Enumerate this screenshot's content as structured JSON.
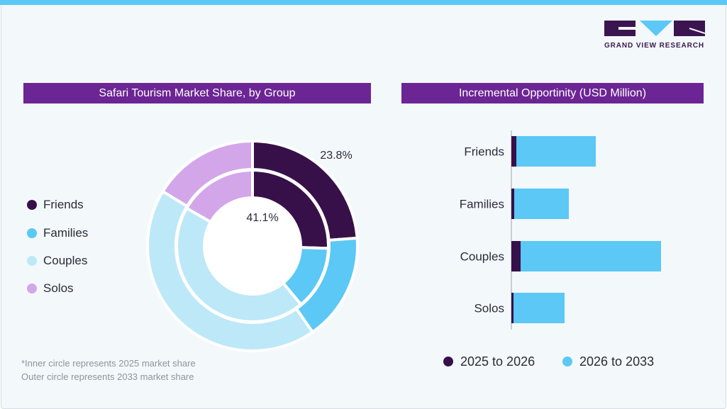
{
  "brand": {
    "logo_text": "GRAND VIEW RESEARCH"
  },
  "colors": {
    "friends": "#37104a",
    "families": "#5bc8f5",
    "couples": "#bde8f8",
    "solos": "#d3a6ea",
    "header": "#6c2594",
    "accent": "#5bc8f5"
  },
  "left_title": "Safari Tourism Market Share, by Group",
  "right_title": "Incremental Opportinity (USD Million)",
  "notes": [
    "*Inner circle represents 2025 market share",
    "Outer circle represents 2033 market share"
  ],
  "chart_data": [
    {
      "type": "pie",
      "style": "nested-donut",
      "title": "Safari Tourism Market Share, by Group",
      "categories": [
        "Friends",
        "Families",
        "Couples",
        "Solos"
      ],
      "series": [
        {
          "name": "Inner circle represents 2025 market share",
          "values": [
            25.5,
            13.5,
            44.3,
            16.7
          ]
        },
        {
          "name": "Outer circle represents 2033 market share",
          "values": [
            23.8,
            16.5,
            43.4,
            16.3
          ]
        }
      ],
      "data_labels": {
        "outer_friends": "23.8%",
        "center": "41.1%"
      },
      "legend": "left"
    },
    {
      "type": "bar",
      "orientation": "horizontal",
      "stacked": true,
      "title": "Incremental Opportinity (USD Million)",
      "categories": [
        "Friends",
        "Families",
        "Couples",
        "Solos"
      ],
      "series": [
        {
          "name": "2025 to 2026",
          "values": [
            7,
            4,
            13,
            3
          ]
        },
        {
          "name": "2026 to 2033",
          "values": [
            112,
            77,
            198,
            72
          ]
        }
      ],
      "xlim": [
        0,
        211
      ],
      "grid": false,
      "legend": "bottom"
    }
  ]
}
